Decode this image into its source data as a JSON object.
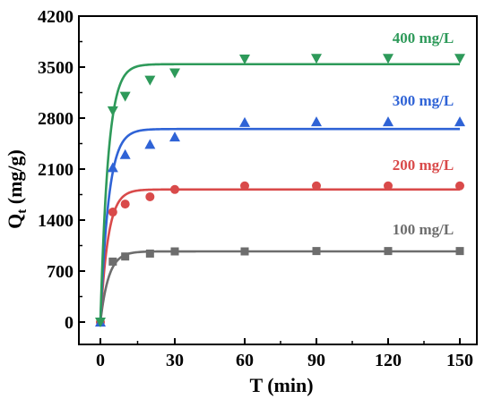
{
  "chart_data": {
    "type": "scatter",
    "xlabel": "T (min)",
    "ylabel": "Q_t (mg/g)",
    "ylabel_main": "Q",
    "ylabel_sub": "t",
    "ylabel_rest": " (mg/g)",
    "xlim": [
      -8,
      155
    ],
    "ylim": [
      -200,
      4200
    ],
    "x_ticks": [
      0,
      30,
      60,
      90,
      120,
      150
    ],
    "y_ticks": [
      0,
      700,
      1400,
      2100,
      2800,
      3500,
      4200
    ],
    "x_break": [
      [
        0,
        30
      ],
      [
        60,
        150
      ]
    ],
    "series": [
      {
        "name": "100 mg/L",
        "color": "#6d6d6d",
        "marker": "square",
        "x": [
          0,
          5,
          10,
          20,
          30,
          60,
          90,
          120,
          150
        ],
        "y": [
          0,
          830,
          900,
          940,
          970,
          970,
          975,
          975,
          975
        ],
        "fit_qe": 970,
        "fit_k": 0.3
      },
      {
        "name": "200 mg/L",
        "color": "#d94a4a",
        "marker": "circle",
        "x": [
          0,
          5,
          10,
          20,
          30,
          60,
          90,
          120,
          150
        ],
        "y": [
          0,
          1510,
          1620,
          1720,
          1820,
          1870,
          1870,
          1870,
          1870
        ],
        "fit_qe": 1820,
        "fit_k": 0.32
      },
      {
        "name": "300 mg/L",
        "color": "#2f63d6",
        "marker": "triangle-up",
        "x": [
          0,
          5,
          10,
          20,
          30,
          60,
          90,
          120,
          150
        ],
        "y": [
          0,
          2120,
          2300,
          2440,
          2540,
          2740,
          2750,
          2750,
          2750
        ],
        "fit_qe": 2650,
        "fit_k": 0.3
      },
      {
        "name": "400 mg/L",
        "color": "#2e9a5a",
        "marker": "triangle-down",
        "x": [
          0,
          5,
          10,
          20,
          30,
          60,
          90,
          120,
          150
        ],
        "y": [
          0,
          2900,
          3100,
          3320,
          3420,
          3610,
          3620,
          3620,
          3620
        ],
        "fit_qe": 3540,
        "fit_k": 0.32
      }
    ]
  }
}
